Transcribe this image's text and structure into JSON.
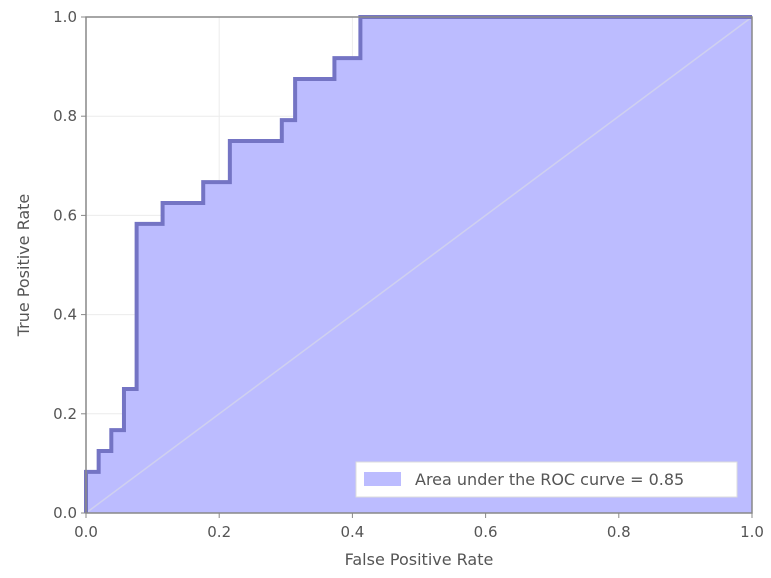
{
  "chart_data": {
    "type": "area",
    "xlabel": "False Positive Rate",
    "ylabel": "True Positive Rate",
    "xlim": [
      0.0,
      1.0
    ],
    "ylim": [
      0.0,
      1.0
    ],
    "xticks": [
      "0.0",
      "0.2",
      "0.4",
      "0.6",
      "0.8",
      "1.0"
    ],
    "yticks": [
      "0.0",
      "0.2",
      "0.4",
      "0.6",
      "0.8",
      "1.0"
    ],
    "grid": true,
    "legend_position": "bottom-right",
    "series": [
      {
        "name": "Area under the ROC curve = 0.85",
        "x": [
          0.0,
          0.0,
          0.019,
          0.019,
          0.038,
          0.038,
          0.057,
          0.057,
          0.076,
          0.076,
          0.115,
          0.115,
          0.176,
          0.176,
          0.216,
          0.216,
          0.294,
          0.294,
          0.314,
          0.314,
          0.373,
          0.373,
          0.412,
          0.412,
          1.0
        ],
        "y": [
          0.0,
          0.083,
          0.083,
          0.125,
          0.125,
          0.167,
          0.167,
          0.25,
          0.25,
          0.583,
          0.583,
          0.625,
          0.625,
          0.667,
          0.667,
          0.75,
          0.75,
          0.792,
          0.792,
          0.875,
          0.875,
          0.917,
          0.917,
          1.0,
          1.0
        ]
      }
    ],
    "reference_line": {
      "x": [
        0.0,
        1.0
      ],
      "y": [
        0.0,
        1.0
      ]
    },
    "colors": {
      "fill": "#bcbcff",
      "line": "#7474c4",
      "reference": "#cfd0ef",
      "axis": "#888888",
      "grid": "#ececec",
      "text": "#555555"
    }
  }
}
